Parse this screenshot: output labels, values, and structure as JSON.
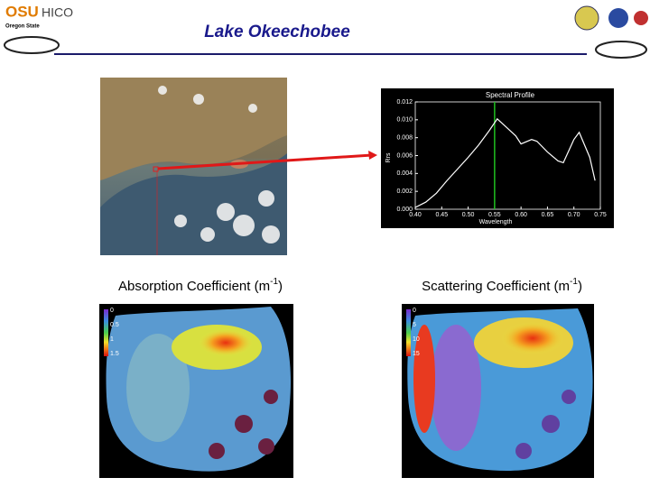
{
  "header": {
    "title": "Lake Okeechobee",
    "logo_left": "OSU",
    "logo_left_sub": "Oregon State",
    "logo_hico": "HICO"
  },
  "spectral_profile": {
    "title": "Spectral Profile",
    "x_label": "Wavelength",
    "y_label": "Rrs",
    "x": [
      0.4,
      0.42,
      0.44,
      0.46,
      0.48,
      0.5,
      0.52,
      0.54,
      0.555,
      0.57,
      0.59,
      0.6,
      0.62,
      0.63,
      0.65,
      0.67,
      0.68,
      0.7,
      0.71,
      0.73,
      0.74
    ],
    "values": [
      0.0002,
      0.0008,
      0.0018,
      0.0032,
      0.0045,
      0.0058,
      0.0072,
      0.0088,
      0.0101,
      0.0093,
      0.0082,
      0.0073,
      0.0078,
      0.0076,
      0.0064,
      0.0054,
      0.0052,
      0.0078,
      0.0086,
      0.0058,
      0.0032
    ],
    "marker_x": 0.55,
    "xlim": [
      0.4,
      0.75
    ],
    "ylim": [
      0,
      0.012
    ],
    "xticks": [
      {
        "value": 0.4,
        "label": "0.40"
      },
      {
        "value": 0.45,
        "label": "0.45"
      },
      {
        "value": 0.5,
        "label": "0.50"
      },
      {
        "value": 0.55,
        "label": "0.55"
      },
      {
        "value": 0.6,
        "label": "0.60"
      },
      {
        "value": 0.65,
        "label": "0.65"
      },
      {
        "value": 0.7,
        "label": "0.70"
      },
      {
        "value": 0.75,
        "label": "0.75"
      }
    ],
    "yticks": [
      {
        "value": 0,
        "label": "0.000"
      },
      {
        "value": 0.002,
        "label": "0.002"
      },
      {
        "value": 0.004,
        "label": "0.004"
      },
      {
        "value": 0.006,
        "label": "0.006"
      },
      {
        "value": 0.008,
        "label": "0.008"
      },
      {
        "value": 0.01,
        "label": "0.010"
      },
      {
        "value": 0.012,
        "label": "0.012"
      }
    ]
  },
  "panels": [
    {
      "label": "Absorption Coefficient (m",
      "sup": "-1",
      "tail": ")",
      "colorbar": [
        "0",
        "0.5",
        "1",
        "1.5"
      ]
    },
    {
      "label": "Scattering Coefficient (m",
      "sup": "-1",
      "tail": ")",
      "colorbar": [
        "0",
        "5",
        "10",
        "15"
      ]
    }
  ]
}
